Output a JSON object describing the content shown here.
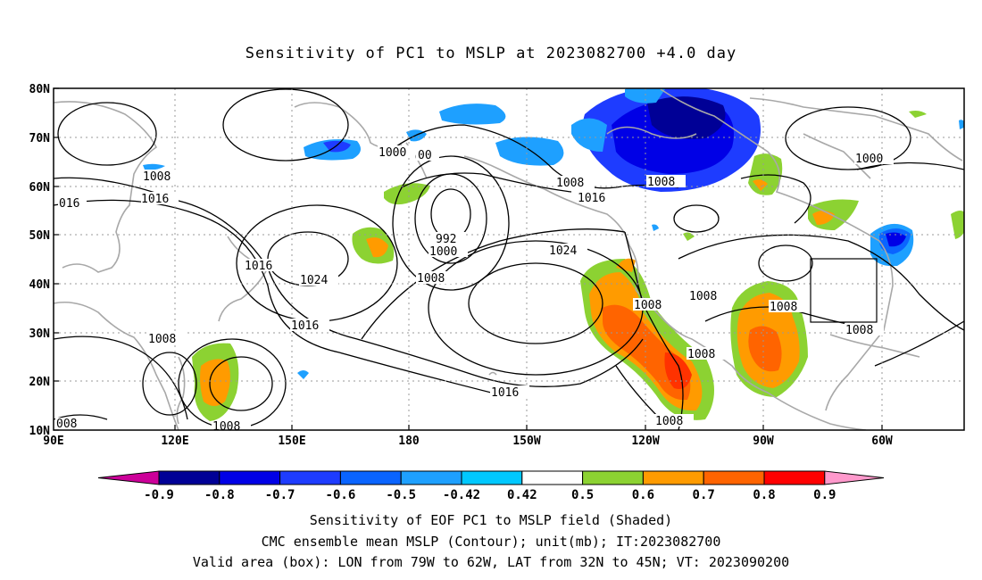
{
  "title": "Sensitivity of PC1 to MSLP at 2023082700 +4.0 day",
  "lat_ticks": [
    "80N",
    "70N",
    "60N",
    "50N",
    "40N",
    "30N",
    "20N",
    "10N"
  ],
  "lon_ticks": [
    "90E",
    "120E",
    "150E",
    "180",
    "150W",
    "120W",
    "90W",
    "60W"
  ],
  "colorbar": {
    "colors": [
      "#000096",
      "#0000e6",
      "#1e3cff",
      "#0a64ff",
      "#1ea0ff",
      "#00c8ff",
      "#ffffff",
      "#8cd232",
      "#ff9b00",
      "#ff6400",
      "#ff3200",
      "#ff0000"
    ],
    "low_triangle_color": "#cc0099",
    "high_triangle_color": "#ff99cc",
    "labels": [
      "-0.9",
      "-0.8",
      "-0.7",
      "-0.6",
      "-0.5",
      "-0.42",
      "0.42",
      "0.5",
      "0.6",
      "0.7",
      "0.8",
      "0.9"
    ]
  },
  "contour_labels": {
    "c1": "1008",
    "c2": "016",
    "c3": "1016",
    "c4": "1016",
    "c5": "1024",
    "c6": "1016",
    "c7": "1008",
    "c8": "1000",
    "c9": "00",
    "c10": "992",
    "c11": "1000",
    "c12": "1008",
    "c13": "1008",
    "c14": "1016",
    "c15": "1008",
    "c16": "1024",
    "c17": "1008",
    "c18": "1008",
    "c19": "1008",
    "c20": "1016",
    "c21": "1008",
    "c22": "1008",
    "c23": "1008",
    "c24": "1000",
    "c25": "008",
    "c26": "1008"
  },
  "footer": {
    "line1": "Sensitivity of EOF PC1 to MSLP field (Shaded)",
    "line2": "CMC ensemble mean MSLP (Contour); unit(mb); IT:2023082700",
    "line3": "Valid area (box): LON from 79W to 62W, LAT from 32N to 45N; VT: 2023090200"
  }
}
